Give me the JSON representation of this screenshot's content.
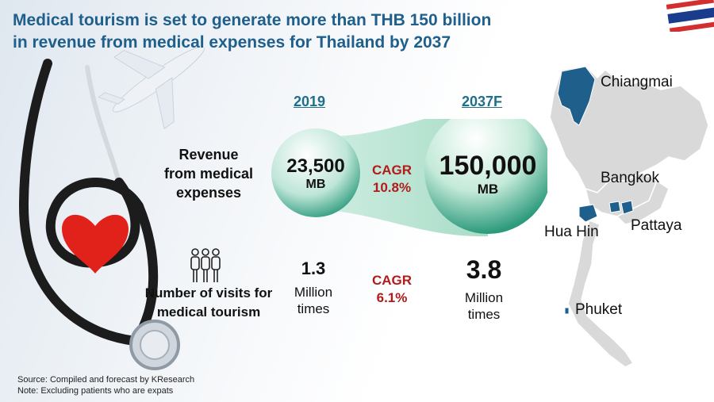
{
  "title_line1": "Medical tourism is set to generate more than THB 150 billion",
  "title_line2": "in revenue from medical expenses for Thailand by 2037",
  "years": {
    "base": "2019",
    "forecast": "2037F"
  },
  "revenue": {
    "label_line1": "Revenue",
    "label_line2": "from medical",
    "label_line3": "expenses",
    "value_2019": "23,500",
    "unit_2019": "MB",
    "value_2037": "150,000",
    "unit_2037": "MB",
    "cagr_label": "CAGR",
    "cagr_value": "10.8%"
  },
  "visits": {
    "label_line1": "Number of visits for",
    "label_line2": "medical tourism",
    "value_2019": "1.3",
    "unit_2019_line1": "Million",
    "unit_2019_line2": "times",
    "value_2037": "3.8",
    "unit_2037_line1": "Million",
    "unit_2037_line2": "times",
    "cagr_label": "CAGR",
    "cagr_value": "6.1%"
  },
  "map_cities": {
    "chiangmai": "Chiangmai",
    "bangkok": "Bangkok",
    "huahin": "Hua Hin",
    "pattaya": "Pattaya",
    "phuket": "Phuket"
  },
  "footnotes": {
    "source": "Source: Compiled and forecast by KResearch",
    "note": "Note: Excluding patients who are expats"
  },
  "colors": {
    "title": "#1f5f8b",
    "year": "#1f6f8b",
    "cagr": "#b01c1c",
    "map_land": "#d9d9d9",
    "map_highlight": "#1f5f8b"
  }
}
